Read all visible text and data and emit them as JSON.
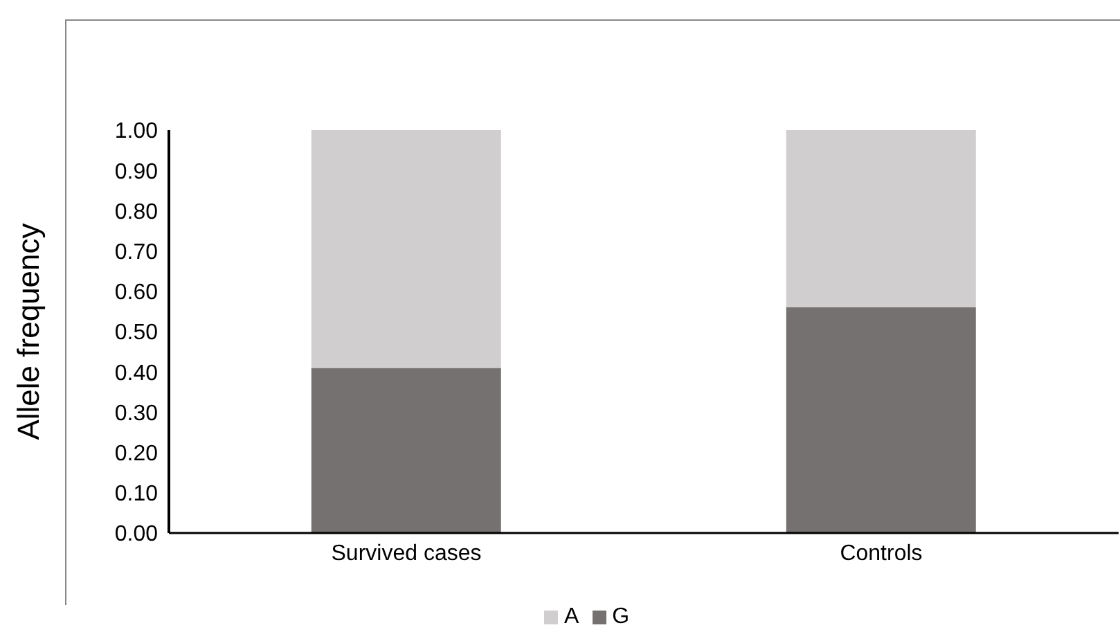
{
  "chart_data": {
    "type": "bar",
    "stacked": true,
    "ylabel": "Allele frequency",
    "categories": [
      "Survived  cases",
      "Controls"
    ],
    "series": [
      {
        "name": "G",
        "color": "#767171",
        "values": [
          0.41,
          0.56
        ]
      },
      {
        "name": "A",
        "color": "#d0cece",
        "values": [
          0.59,
          0.44
        ]
      }
    ],
    "ylim": [
      0,
      1
    ],
    "yticks": [
      {
        "value": 0,
        "label": "0.00"
      },
      {
        "value": 0.1,
        "label": "0.10"
      },
      {
        "value": 0.2,
        "label": "0.20"
      },
      {
        "value": 0.3,
        "label": "0.30"
      },
      {
        "value": 0.4,
        "label": "0.40"
      },
      {
        "value": 0.5,
        "label": "0.50"
      },
      {
        "value": 0.6,
        "label": "0.60"
      },
      {
        "value": 0.7,
        "label": "0.70"
      },
      {
        "value": 0.8,
        "label": "0.80"
      },
      {
        "value": 0.9,
        "label": "0.90"
      },
      {
        "value": 1,
        "label": "1.00"
      }
    ],
    "grid": false,
    "legend": "bottom"
  }
}
